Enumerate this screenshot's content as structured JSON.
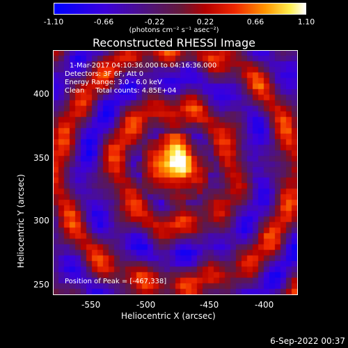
{
  "colorbar": {
    "ticks": [
      "-1.10",
      "-0.66",
      "-0.22",
      "0.22",
      "0.66",
      "1.10"
    ],
    "units": "(photons cm⁻² s⁻¹ asec⁻²)",
    "range": [
      -1.1,
      1.1
    ]
  },
  "plot": {
    "title": "Reconstructed RHESSI Image",
    "info": {
      "time_range": "1-Mar-2017 04:10:36.000 to 04:16:36.000",
      "detectors": "Detectors: 3F 6F, Att 0",
      "energy": "Energy Range: 3.0 - 6.0 keV",
      "method": "Clean     Total counts: 4.85E+04"
    },
    "peak": "Position of Peak = [-467,338]",
    "x_axis": {
      "label": "Heliocentric X (arcsec)",
      "ticks": [
        "-550",
        "-500",
        "-450",
        "-400"
      ],
      "range": [
        -572,
        -380
      ]
    },
    "y_axis": {
      "label": "Heliocentric Y (arcsec)",
      "ticks": [
        "400",
        "350",
        "300",
        "250"
      ],
      "range": [
        236,
        428
      ]
    }
  },
  "footer": {
    "timestamp": "6-Sep-2022 00:37"
  }
}
